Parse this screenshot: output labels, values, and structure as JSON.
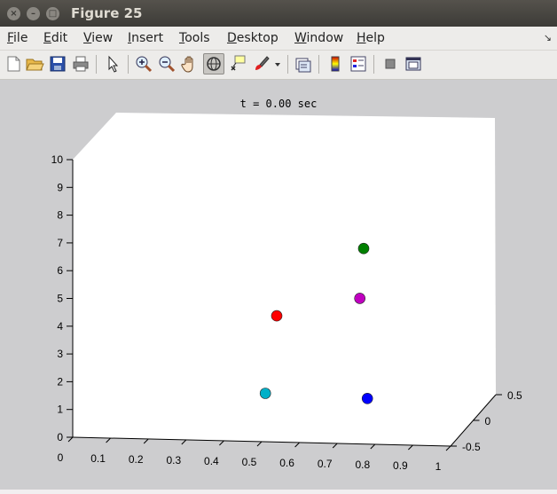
{
  "window": {
    "title": "Figure 25",
    "close_icon": "×",
    "minimize_icon": "–",
    "maximize_icon": "□"
  },
  "menu": {
    "items": [
      {
        "mnemonic": "F",
        "rest": "ile"
      },
      {
        "mnemonic": "E",
        "rest": "dit"
      },
      {
        "mnemonic": "V",
        "rest": "iew"
      },
      {
        "mnemonic": "I",
        "rest": "nsert"
      },
      {
        "mnemonic": "T",
        "rest": "ools"
      },
      {
        "mnemonic": "D",
        "rest": "esktop"
      },
      {
        "mnemonic": "W",
        "rest": "indow"
      },
      {
        "mnemonic": "H",
        "rest": "elp"
      }
    ],
    "overflow_icon": "↘"
  },
  "toolbar": {
    "buttons": [
      "new-figure-icon",
      "open-file-icon",
      "save-icon",
      "print-icon",
      "pointer-icon",
      "zoom-in-icon",
      "zoom-out-icon",
      "pan-hand-icon",
      "rotate-3d-icon",
      "data-cursor-icon",
      "brush-icon",
      "brush-dropdown-icon",
      "link-plot-icon",
      "colorbar-icon",
      "legend-icon",
      "hide-plot-tools-icon",
      "show-plot-tools-icon"
    ],
    "active": "rotate-3d-icon"
  },
  "plot": {
    "title": "t = 0.00 sec",
    "z_ticks": [
      "0",
      "1",
      "2",
      "3",
      "4",
      "5",
      "6",
      "7",
      "8",
      "9",
      "10"
    ],
    "x_ticks": [
      "0",
      "0.1",
      "0.2",
      "0.3",
      "0.4",
      "0.5",
      "0.6",
      "0.7",
      "0.8",
      "0.9",
      "1"
    ],
    "y_ticks": [
      "-0.5",
      "0",
      "0.5"
    ]
  },
  "chart_data": {
    "type": "scatter",
    "title": "t = 0.00 sec",
    "xlim": [
      0,
      1
    ],
    "ylim": [
      -0.5,
      0.5
    ],
    "zlim": [
      0,
      10
    ],
    "grid": false,
    "points": [
      {
        "x": 0.71,
        "y": 0.0,
        "z": 6.1,
        "color": "#008000"
      },
      {
        "x": 0.7,
        "y": 0.0,
        "z": 4.3,
        "color": "#c000c0"
      },
      {
        "x": 0.48,
        "y": 0.0,
        "z": 3.6,
        "color": "#ff0000"
      },
      {
        "x": 0.45,
        "y": 0.0,
        "z": 0.8,
        "color": "#00b0c8"
      },
      {
        "x": 0.72,
        "y": 0.0,
        "z": 0.7,
        "color": "#0000ff"
      }
    ]
  }
}
